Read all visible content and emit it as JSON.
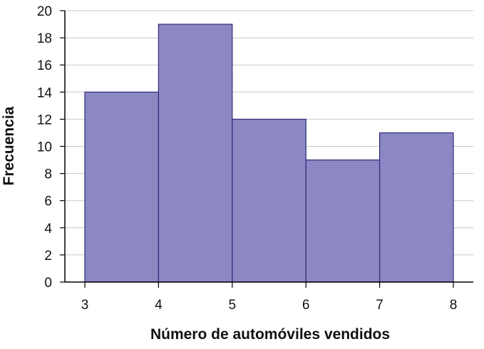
{
  "chart_data": {
    "type": "bar",
    "title": "",
    "xlabel": "Número de automóviles vendidos",
    "ylabel": "Frecuencia",
    "bins": [
      {
        "x_start": 3,
        "x_end": 4,
        "value": 14
      },
      {
        "x_start": 4,
        "x_end": 5,
        "value": 19
      },
      {
        "x_start": 5,
        "x_end": 6,
        "value": 12
      },
      {
        "x_start": 6,
        "x_end": 7,
        "value": 9
      },
      {
        "x_start": 7,
        "x_end": 8,
        "value": 11
      }
    ],
    "xticks": [
      "3",
      "4",
      "5",
      "6",
      "7",
      "8"
    ],
    "yticks": [
      "0",
      "2",
      "4",
      "6",
      "8",
      "10",
      "12",
      "14",
      "16",
      "18",
      "20"
    ],
    "xlim": [
      3,
      8
    ],
    "ylim": [
      0,
      20
    ],
    "grid": "horizontal",
    "legend": "none",
    "colors": {
      "bar_fill": "#8c88c4",
      "bar_stroke": "#2f2a78",
      "grid": "#c8c8c8",
      "axis": "#000000"
    }
  }
}
